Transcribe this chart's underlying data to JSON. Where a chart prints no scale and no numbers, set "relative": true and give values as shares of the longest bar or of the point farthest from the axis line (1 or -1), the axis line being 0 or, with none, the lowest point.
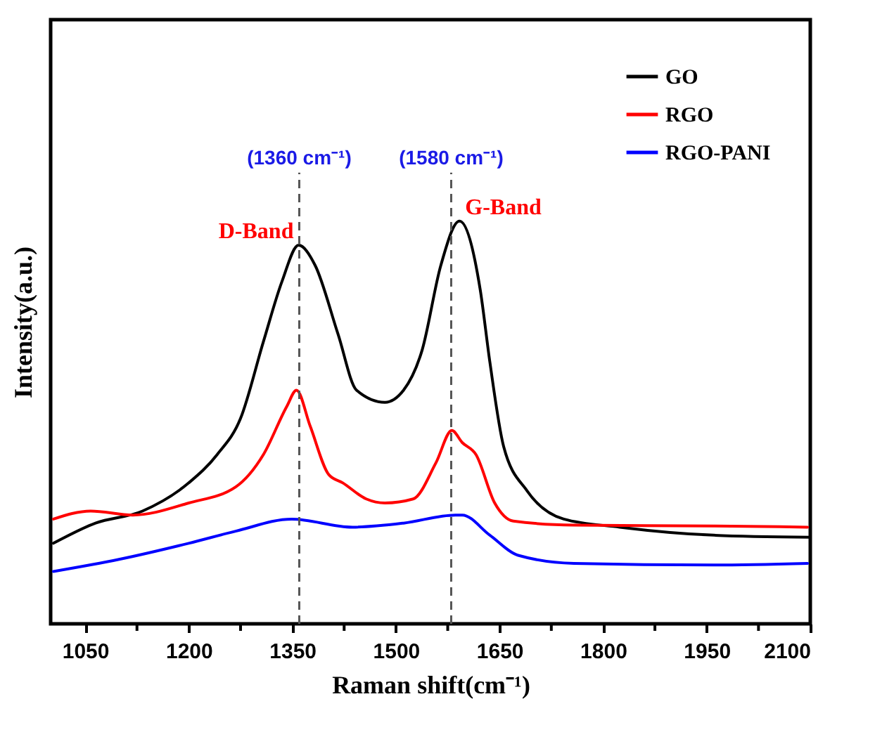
{
  "chart_data": {
    "type": "line",
    "xlabel": "Raman shift(cm⁻¹)",
    "ylabel": "Intensity(a.u.)",
    "relative": true,
    "xlim": [
      1000,
      2100
    ],
    "xticks": [
      1050,
      {
        "value": 1125,
        "label": null
      },
      1200,
      {
        "value": 1275,
        "label": null
      },
      1350,
      {
        "value": 1425,
        "label": null
      },
      1500,
      {
        "value": 1575,
        "label": null
      },
      1650,
      {
        "value": 1725,
        "label": null
      },
      1800,
      {
        "value": 1875,
        "label": null
      },
      1950,
      {
        "value": 2025,
        "label": null
      },
      2100
    ],
    "legend": "top right",
    "grid": false,
    "line_style": "solid",
    "marker": "none",
    "series": [
      {
        "name": "GO",
        "color": "#000000",
        "x": [
          1004,
          1065,
          1133,
          1200,
          1241,
          1275,
          1308,
          1335,
          1359,
          1383,
          1416,
          1443,
          1484,
          1511,
          1538,
          1565,
          1592,
          1622,
          1636,
          1656,
          1690,
          1743,
          1824,
          1960,
          2098
        ],
        "values": [
          0.2,
          0.25,
          0.28,
          0.35,
          0.42,
          0.51,
          0.7,
          0.85,
          0.94,
          0.89,
          0.72,
          0.58,
          0.55,
          0.58,
          0.68,
          0.89,
          1.0,
          0.83,
          0.65,
          0.44,
          0.33,
          0.26,
          0.24,
          0.22,
          0.215
        ]
      },
      {
        "name": "RGO",
        "color": "#ff0000",
        "x": [
          1004,
          1058,
          1119,
          1200,
          1268,
          1308,
          1342,
          1356,
          1376,
          1403,
          1423,
          1457,
          1484,
          1525,
          1558,
          1581,
          1596,
          1616,
          1643,
          1670,
          1758,
          1960,
          2096
        ],
        "values": [
          0.26,
          0.28,
          0.27,
          0.3,
          0.34,
          0.42,
          0.54,
          0.58,
          0.49,
          0.37,
          0.35,
          0.31,
          0.3,
          0.31,
          0.4,
          0.48,
          0.45,
          0.42,
          0.3,
          0.255,
          0.245,
          0.243,
          0.24
        ]
      },
      {
        "name": "RGO-PANI",
        "color": "#0000ff",
        "x": [
          1004,
          1099,
          1200,
          1268,
          1349,
          1437,
          1511,
          1586,
          1596,
          1636,
          1677,
          1758,
          1960,
          2096
        ],
        "values": [
          0.13,
          0.16,
          0.2,
          0.23,
          0.26,
          0.24,
          0.25,
          0.27,
          0.27,
          0.22,
          0.17,
          0.15,
          0.146,
          0.15
        ]
      }
    ],
    "ref_lines": [
      {
        "axis": "x",
        "value": 1360,
        "label": "(1360 cm⁻¹)",
        "color": "#555555",
        "line_style": "dashed"
      },
      {
        "axis": "x",
        "value": 1580,
        "label": "(1580 cm⁻¹)",
        "color": "#555555",
        "line_style": "dashed"
      }
    ],
    "annotations": [
      {
        "text": "D-Band",
        "x": 1360,
        "y": 0.94
      },
      {
        "text": "G-Band",
        "x": 1592,
        "y": 1.0
      }
    ]
  }
}
